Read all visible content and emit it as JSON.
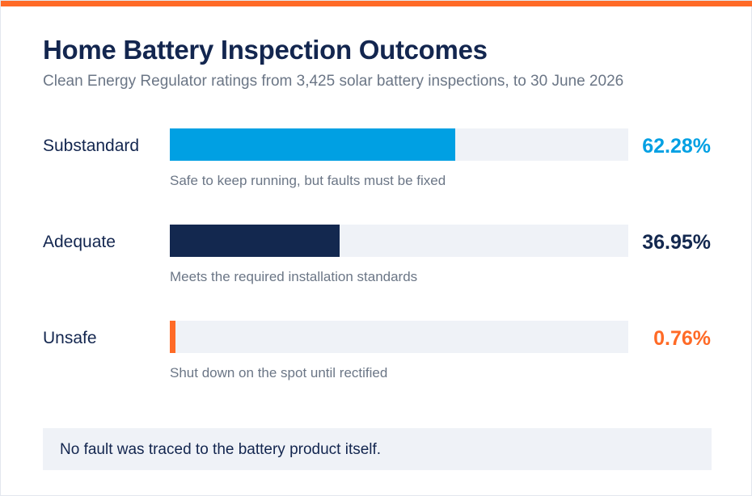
{
  "colors": {
    "accent_top": "#ff6a26",
    "substandard": "#00a0e3",
    "adequate": "#13284f",
    "unsafe": "#ff6a26",
    "track": "#eff2f7"
  },
  "header": {
    "title": "Home Battery Inspection Outcomes",
    "subtitle": "Clean Energy Regulator ratings from 3,425 solar battery inspections, to 30 June 2026"
  },
  "chart_data": {
    "type": "bar",
    "orientation": "horizontal",
    "categories": [
      "Substandard",
      "Adequate",
      "Unsafe"
    ],
    "values": [
      62.28,
      36.95,
      0.76
    ],
    "value_labels": [
      "62.28%",
      "36.95%",
      "0.76%"
    ],
    "descriptions": [
      "Safe to keep running, but faults must be fixed",
      "Meets the required installation standards",
      "Shut down on the spot until rectified"
    ],
    "xlim": [
      0,
      100
    ],
    "grid": false
  },
  "note": {
    "text": "No fault was traced to the battery product itself."
  }
}
